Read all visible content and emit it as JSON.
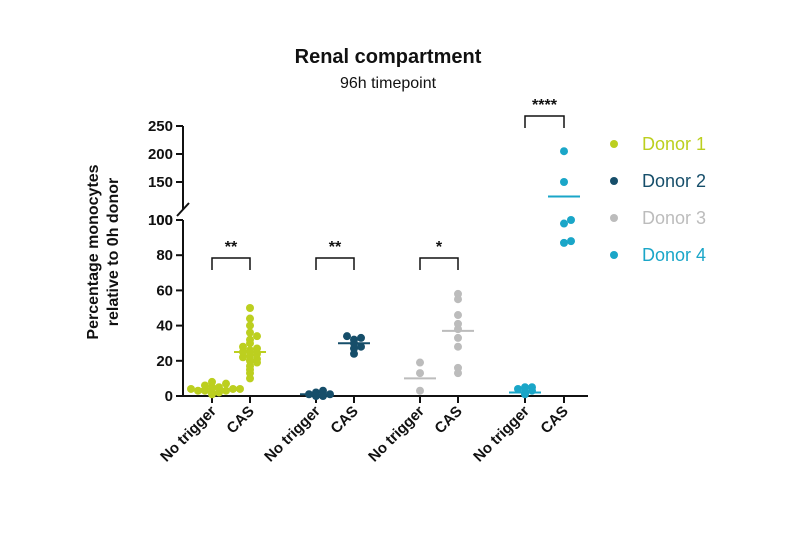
{
  "chart_data": {
    "type": "scatter",
    "title": "Renal compartment",
    "subtitle": "96h timepoint",
    "ylabel_line1": "Percentage monocytes",
    "ylabel_line2": "relative to 0h donor",
    "y_lower": {
      "range": [
        0,
        100
      ],
      "ticks": [
        "0",
        "20",
        "40",
        "60",
        "80",
        "100"
      ]
    },
    "y_upper": {
      "range": [
        100,
        250
      ],
      "ticks": [
        "100",
        "150",
        "200",
        "250"
      ]
    },
    "categories": [
      "No trigger",
      "CAS",
      "No trigger",
      "CAS",
      "No trigger",
      "CAS",
      "No trigger",
      "CAS"
    ],
    "series": [
      {
        "name": "Donor 1",
        "color": "#bccf1f",
        "no_trigger": {
          "mean": 4,
          "values": [
            1,
            2,
            2,
            3,
            3,
            3,
            4,
            4,
            4,
            5,
            5,
            6,
            7,
            8
          ]
        },
        "cas": {
          "mean": 25,
          "values": [
            10,
            13,
            15,
            17,
            19,
            20,
            21,
            22,
            23,
            24,
            25,
            26,
            27,
            28,
            30,
            32,
            34,
            36,
            40,
            44,
            50
          ]
        }
      },
      {
        "name": "Donor 2",
        "color": "#164e6a",
        "no_trigger": {
          "mean": 1,
          "values": [
            0,
            0,
            1,
            1,
            2,
            3
          ]
        },
        "cas": {
          "mean": 30,
          "values": [
            24,
            27,
            28,
            30,
            32,
            33,
            34
          ]
        }
      },
      {
        "name": "Donor 3",
        "color": "#bcbcbc",
        "no_trigger": {
          "mean": 10,
          "values": [
            3,
            13,
            19
          ]
        },
        "cas": {
          "mean": 37,
          "values": [
            13,
            16,
            28,
            33,
            38,
            41,
            46,
            55,
            58
          ]
        }
      },
      {
        "name": "Donor 4",
        "color": "#1aa6c8",
        "no_trigger": {
          "mean": 2,
          "values": [
            1,
            2,
            3,
            4,
            5,
            5
          ]
        },
        "cas": {
          "mean": 124,
          "values": [
            87,
            88,
            98,
            100,
            150,
            205
          ]
        }
      }
    ],
    "significance": [
      "**",
      "**",
      "*",
      "****"
    ],
    "legend_position": "right"
  }
}
